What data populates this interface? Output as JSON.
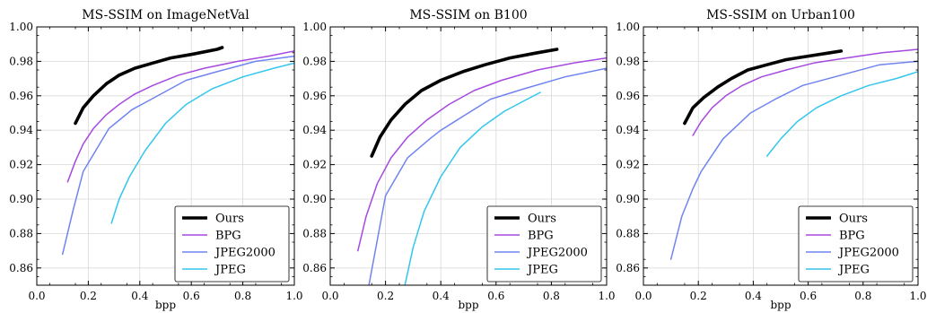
{
  "colors": {
    "Ours": "#000000",
    "BPG": "#a649e0",
    "JPEG2000": "#6f84f0",
    "JPEG": "#33c6ec",
    "grid": "#d9d9d9",
    "frame": "#000000"
  },
  "chart_data": [
    {
      "type": "line",
      "title": "MS-SSIM on ImageNetVal",
      "xlabel": "bpp",
      "ylabel": "",
      "xlim": [
        0.0,
        1.0
      ],
      "ylim": [
        0.85,
        1.0
      ],
      "xticks": [
        "0.0",
        "0.2",
        "0.4",
        "0.6",
        "0.8",
        "1.0"
      ],
      "yticks": [
        "0.86",
        "0.88",
        "0.90",
        "0.92",
        "0.94",
        "0.96",
        "0.98",
        "1.00"
      ],
      "grid": true,
      "legend": "lower-right",
      "series": [
        {
          "name": "Ours",
          "x": [
            0.15,
            0.18,
            0.22,
            0.27,
            0.32,
            0.38,
            0.45,
            0.52,
            0.6,
            0.7,
            0.72
          ],
          "y": [
            0.944,
            0.953,
            0.96,
            0.967,
            0.972,
            0.976,
            0.979,
            0.982,
            0.984,
            0.987,
            0.988
          ]
        },
        {
          "name": "BPG",
          "x": [
            0.12,
            0.15,
            0.18,
            0.22,
            0.27,
            0.32,
            0.38,
            0.45,
            0.55,
            0.65,
            0.78,
            0.9,
            1.0
          ],
          "y": [
            0.91,
            0.922,
            0.932,
            0.941,
            0.949,
            0.955,
            0.961,
            0.966,
            0.972,
            0.976,
            0.98,
            0.983,
            0.986
          ]
        },
        {
          "name": "JPEG2000",
          "x": [
            0.1,
            0.14,
            0.18,
            0.28,
            0.37,
            0.42,
            0.58,
            0.7,
            0.85,
            1.0
          ],
          "y": [
            0.868,
            0.893,
            0.916,
            0.941,
            0.952,
            0.956,
            0.969,
            0.974,
            0.98,
            0.983
          ]
        },
        {
          "name": "JPEG",
          "x": [
            0.29,
            0.32,
            0.36,
            0.42,
            0.5,
            0.58,
            0.68,
            0.8,
            0.92,
            1.0
          ],
          "y": [
            0.886,
            0.9,
            0.913,
            0.928,
            0.944,
            0.955,
            0.964,
            0.971,
            0.976,
            0.979
          ]
        }
      ]
    },
    {
      "type": "line",
      "title": "MS-SSIM on B100",
      "xlabel": "bpp",
      "ylabel": "",
      "xlim": [
        0.0,
        1.0
      ],
      "ylim": [
        0.85,
        1.0
      ],
      "xticks": [
        "0.0",
        "0.2",
        "0.4",
        "0.6",
        "0.8",
        "1.0"
      ],
      "yticks": [
        "0.86",
        "0.88",
        "0.90",
        "0.92",
        "0.94",
        "0.96",
        "0.98",
        "1.00"
      ],
      "grid": true,
      "legend": "lower-right",
      "series": [
        {
          "name": "Ours",
          "x": [
            0.15,
            0.18,
            0.22,
            0.27,
            0.33,
            0.4,
            0.48,
            0.56,
            0.65,
            0.75,
            0.82
          ],
          "y": [
            0.925,
            0.936,
            0.946,
            0.955,
            0.963,
            0.969,
            0.974,
            0.978,
            0.982,
            0.985,
            0.987
          ]
        },
        {
          "name": "BPG",
          "x": [
            0.1,
            0.13,
            0.17,
            0.22,
            0.28,
            0.35,
            0.43,
            0.52,
            0.62,
            0.75,
            0.88,
            1.0
          ],
          "y": [
            0.87,
            0.89,
            0.909,
            0.924,
            0.936,
            0.946,
            0.955,
            0.963,
            0.969,
            0.975,
            0.979,
            0.982
          ]
        },
        {
          "name": "JPEG2000",
          "x": [
            0.14,
            0.2,
            0.28,
            0.36,
            0.4,
            0.48,
            0.58,
            0.7,
            0.85,
            1.0
          ],
          "y": [
            0.85,
            0.902,
            0.924,
            0.935,
            0.94,
            0.948,
            0.958,
            0.964,
            0.971,
            0.976
          ]
        },
        {
          "name": "JPEG",
          "x": [
            0.27,
            0.3,
            0.34,
            0.4,
            0.47,
            0.55,
            0.63,
            0.7,
            0.76
          ],
          "y": [
            0.85,
            0.872,
            0.893,
            0.913,
            0.93,
            0.942,
            0.951,
            0.957,
            0.962
          ]
        }
      ]
    },
    {
      "type": "line",
      "title": "MS-SSIM on Urban100",
      "xlabel": "bpp",
      "ylabel": "",
      "xlim": [
        0.0,
        1.0
      ],
      "ylim": [
        0.85,
        1.0
      ],
      "xticks": [
        "0.0",
        "0.2",
        "0.4",
        "0.6",
        "0.8",
        "1.0"
      ],
      "yticks": [
        "0.86",
        "0.88",
        "0.90",
        "0.92",
        "0.94",
        "0.96",
        "0.98",
        "1.00"
      ],
      "grid": true,
      "legend": "lower-right",
      "series": [
        {
          "name": "Ours",
          "x": [
            0.15,
            0.18,
            0.22,
            0.27,
            0.32,
            0.38,
            0.45,
            0.52,
            0.6,
            0.68,
            0.72
          ],
          "y": [
            0.944,
            0.953,
            0.959,
            0.965,
            0.97,
            0.975,
            0.978,
            0.981,
            0.983,
            0.985,
            0.986
          ]
        },
        {
          "name": "BPG",
          "x": [
            0.18,
            0.21,
            0.25,
            0.3,
            0.36,
            0.43,
            0.52,
            0.62,
            0.74,
            0.87,
            1.0
          ],
          "y": [
            0.937,
            0.945,
            0.953,
            0.96,
            0.966,
            0.971,
            0.975,
            0.979,
            0.982,
            0.985,
            0.987
          ]
        },
        {
          "name": "JPEG2000",
          "x": [
            0.1,
            0.14,
            0.18,
            0.21,
            0.29,
            0.39,
            0.48,
            0.58,
            0.72,
            0.86,
            1.0
          ],
          "y": [
            0.865,
            0.89,
            0.906,
            0.916,
            0.935,
            0.95,
            0.958,
            0.966,
            0.972,
            0.978,
            0.98
          ]
        },
        {
          "name": "JPEG",
          "x": [
            0.45,
            0.5,
            0.56,
            0.63,
            0.72,
            0.82,
            0.92,
            1.0
          ],
          "y": [
            0.925,
            0.935,
            0.945,
            0.953,
            0.96,
            0.966,
            0.97,
            0.974
          ]
        }
      ]
    }
  ]
}
